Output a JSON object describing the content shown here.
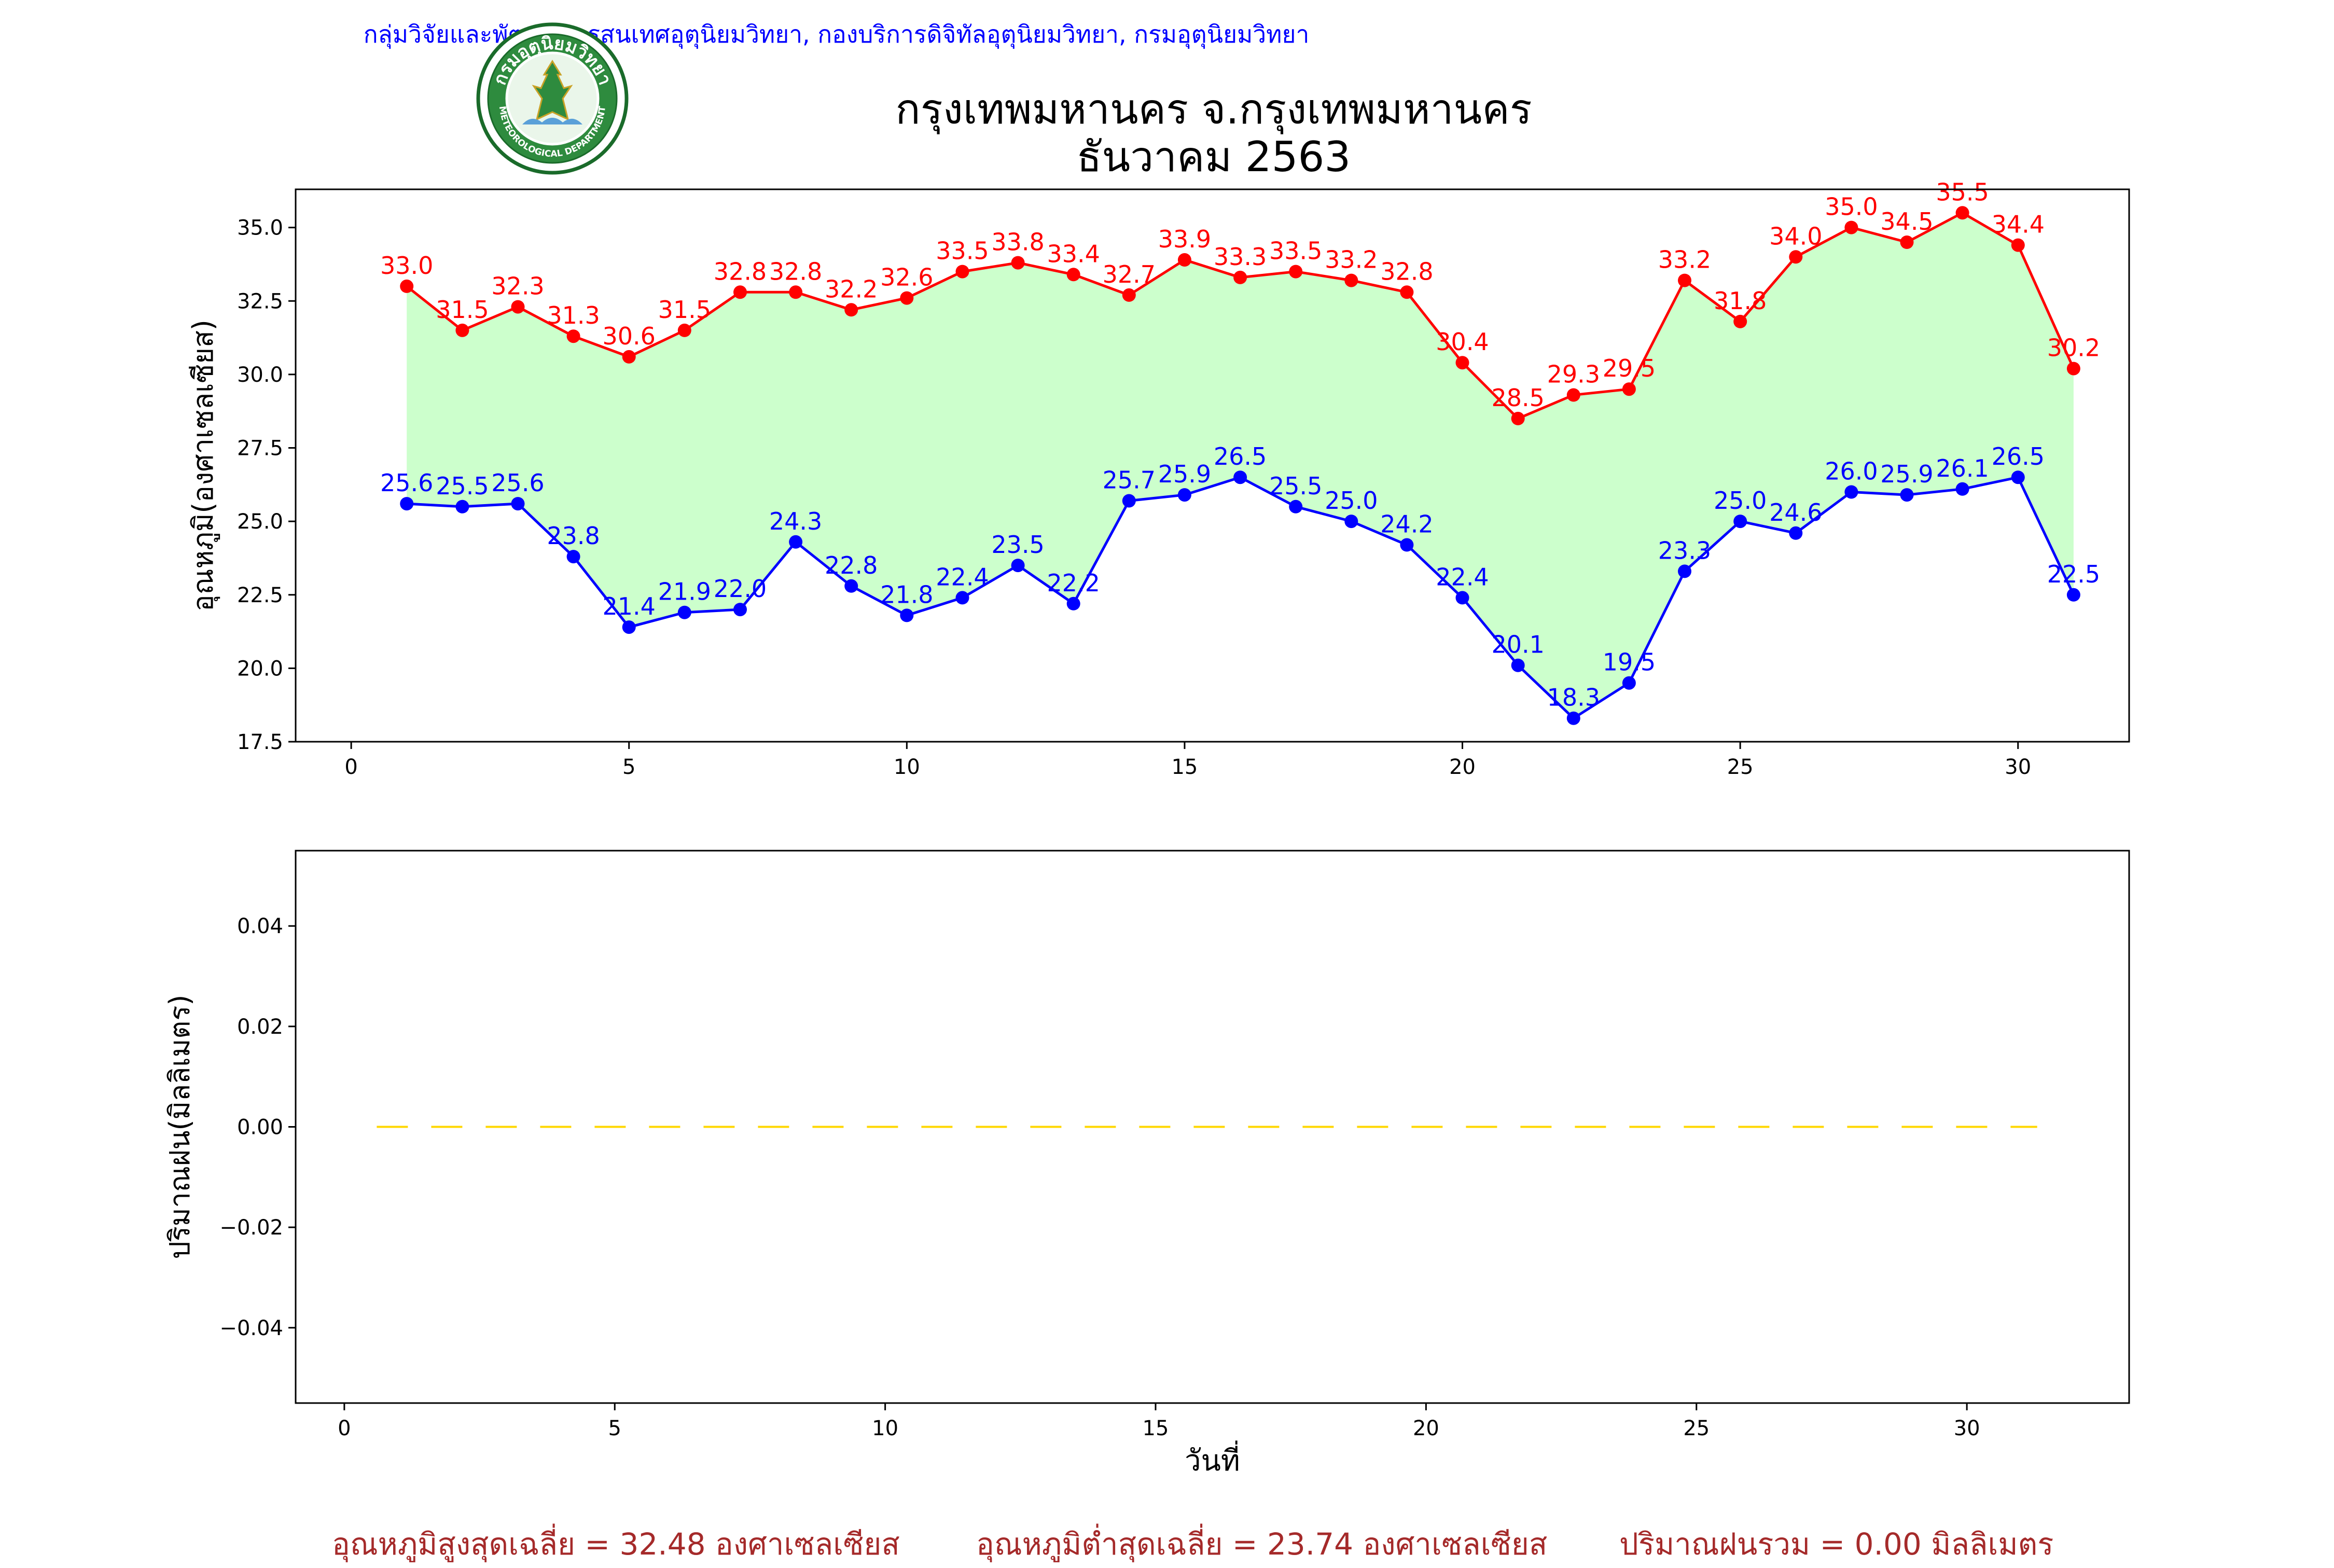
{
  "header": {
    "credit": "กลุ่มวิจัยและพัฒนาสารสนเทศอุตุนิยมวิทยา, กองบริการดิจิทัลอุตุนิยมวิทยา, กรมอุตุนิยมวิทยา",
    "title_line1": "กรุงเทพมหานคร จ.กรุงเทพมหานคร",
    "title_line2": "ธันวาคม 2563",
    "logo_icon": "meteorological-department-seal-icon",
    "logo_text": "กรมอุตุนิยมวิทยา METEOROLOGICAL DEPARTMENT"
  },
  "summary": {
    "avg_max": "อุณหภูมิสูงสุดเฉลี่ย = 32.48 องศาเซลเซียส",
    "avg_min": "อุณหภูมิต่ำสุดเฉลี่ย = 23.74 องศาเซลเซียส",
    "total_rain": "ปริมาณฝนรวม = 0.00 มิลลิเมตร"
  },
  "colors": {
    "max_line": "#ff0000",
    "min_line": "#0000ff",
    "fill": "#ccffcc",
    "rain_line": "#ffd700",
    "summary_text": "#a52a2a",
    "credit_text": "#0000ff"
  },
  "chart_data": [
    {
      "type": "line",
      "title": "",
      "xlabel": "",
      "ylabel": "อุณหภูมิ(องศาเซลเซียส)",
      "xlim": [
        -1,
        32
      ],
      "ylim": [
        17.5,
        36.3
      ],
      "xticks": [
        0,
        5,
        10,
        15,
        20,
        25,
        30
      ],
      "yticks": [
        17.5,
        20.0,
        22.5,
        25.0,
        27.5,
        30.0,
        32.5,
        35.0
      ],
      "grid": false,
      "fill_between": true,
      "x": [
        1,
        2,
        3,
        4,
        5,
        6,
        7,
        8,
        9,
        10,
        11,
        12,
        13,
        14,
        15,
        16,
        17,
        18,
        19,
        20,
        21,
        22,
        23,
        24,
        25,
        26,
        27,
        28,
        29,
        30,
        31
      ],
      "series": [
        {
          "key": "max",
          "color": "#ff0000",
          "values": [
            33.0,
            31.5,
            32.3,
            31.3,
            30.6,
            31.5,
            32.8,
            32.8,
            32.2,
            32.6,
            33.5,
            33.8,
            33.4,
            32.7,
            33.9,
            33.3,
            33.5,
            33.2,
            32.8,
            30.4,
            28.5,
            29.3,
            29.5,
            33.2,
            31.8,
            34.0,
            35.0,
            34.5,
            35.5,
            34.4,
            30.2
          ]
        },
        {
          "key": "min",
          "color": "#0000ff",
          "values": [
            25.6,
            25.5,
            25.6,
            23.8,
            21.4,
            21.9,
            22.0,
            24.3,
            22.8,
            21.8,
            22.4,
            23.5,
            22.2,
            25.7,
            25.9,
            26.5,
            25.5,
            25.0,
            24.2,
            22.4,
            20.1,
            18.3,
            19.5,
            23.3,
            25.0,
            24.6,
            26.0,
            25.9,
            26.1,
            26.5,
            22.5
          ]
        }
      ]
    },
    {
      "type": "line",
      "title": "",
      "xlabel": "วันที่",
      "ylabel": "ปริมาณฝน(มิลลิเมตร)",
      "xlim": [
        -0.9,
        33
      ],
      "ylim": [
        -0.055,
        0.055
      ],
      "xticks": [
        0,
        5,
        10,
        15,
        20,
        25,
        30
      ],
      "yticks": [
        -0.04,
        -0.02,
        0.0,
        0.02,
        0.04
      ],
      "ytick_labels": [
        "−0.04",
        "−0.02",
        "0.00",
        "0.02",
        "0.04"
      ],
      "grid": false,
      "line_style": "dashed",
      "x": [
        0.6,
        31.3
      ],
      "series": [
        {
          "key": "rain",
          "color": "#ffd700",
          "values": [
            0.0,
            0.0
          ]
        }
      ]
    }
  ]
}
